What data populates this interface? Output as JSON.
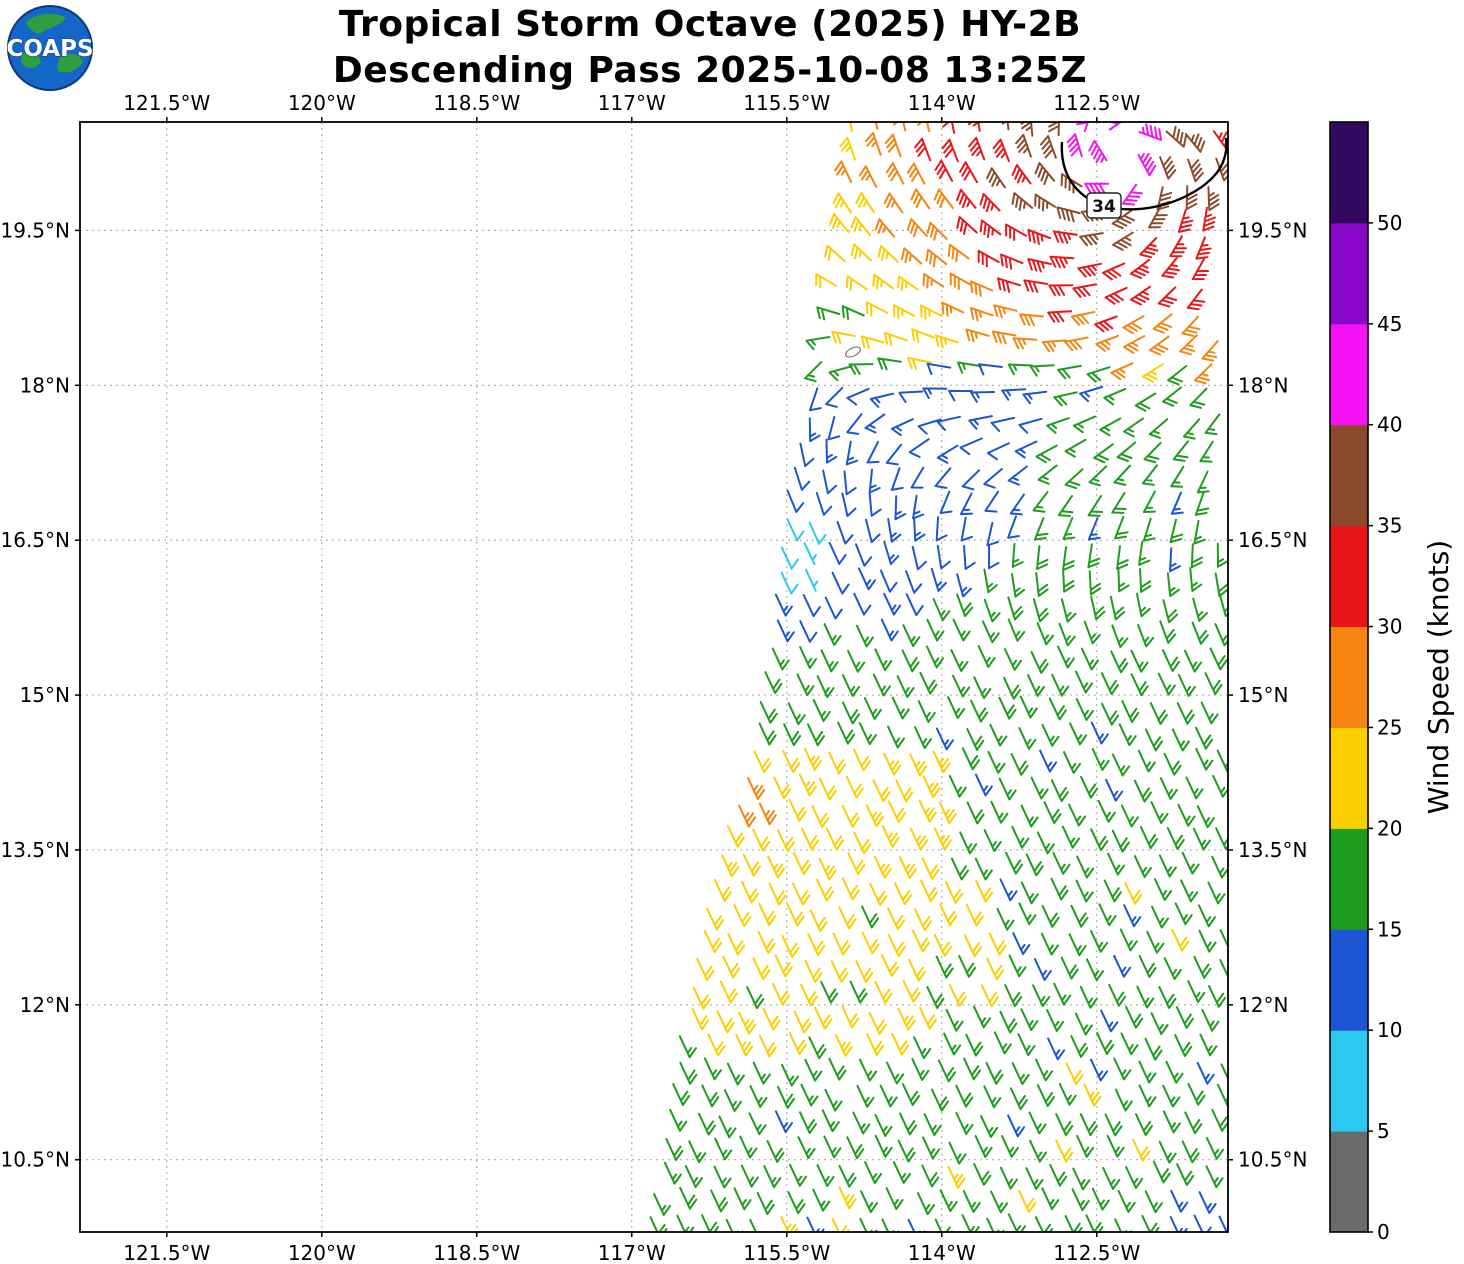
{
  "logo": {
    "text": "COAPS"
  },
  "chart_data": {
    "type": "wind_barb_map",
    "title_line1": "Tropical Storm Octave (2025) HY-2B",
    "title_line2": "Descending Pass 2025-10-08 13:25Z",
    "x_axis": {
      "ticks": [
        -121.5,
        -120,
        -118.5,
        -117,
        -115.5,
        -114,
        -112.5
      ],
      "labels": [
        "121.5°W",
        "120°W",
        "118.5°W",
        "117°W",
        "115.5°W",
        "114°W",
        "112.5°W"
      ]
    },
    "y_axis": {
      "ticks": [
        19.5,
        18,
        16.5,
        15,
        13.5,
        12,
        10.5
      ],
      "labels": [
        "19.5°N",
        "18°N",
        "16.5°N",
        "15°N",
        "13.5°N",
        "12°N",
        "10.5°N"
      ]
    },
    "lon_range": [
      -122.34,
      -111.23
    ],
    "lat_range": [
      9.8,
      20.55
    ],
    "grid": "dashed",
    "colorbar": {
      "label": "Wind Speed (knots)",
      "tick_values": [
        0,
        5,
        10,
        15,
        20,
        25,
        30,
        35,
        40,
        45,
        50
      ],
      "vmax": 55,
      "bin_size": 5,
      "colors": [
        "#6b6b6b",
        "#2BC8F0",
        "#1B55D6",
        "#1E9C1E",
        "#FCCE00",
        "#F58410",
        "#E8161B",
        "#8C4A2C",
        "#F513F5",
        "#8A07CC",
        "#33085F"
      ]
    },
    "contour": {
      "label": "34",
      "value_kt": 34
    },
    "wind_field": {
      "grid_step_deg": 0.25,
      "lat_min": 9.85,
      "lat_max": 20.45,
      "right_lon": -111.28,
      "swath_left_edge": [
        [
          20.5,
          -114.85
        ],
        [
          19.5,
          -114.92
        ],
        [
          18.5,
          -115.05
        ],
        [
          17.5,
          -115.35
        ],
        [
          16.5,
          -115.55
        ],
        [
          15.5,
          -115.62
        ],
        [
          14.5,
          -115.8
        ],
        [
          13.5,
          -116.15
        ],
        [
          12.5,
          -116.32
        ],
        [
          11.5,
          -116.55
        ],
        [
          10.5,
          -116.7
        ],
        [
          9.8,
          -116.85
        ]
      ],
      "storm_center": {
        "lon": -112.3,
        "lat": 20.2
      },
      "radial_profile": [
        [
          0,
          45
        ],
        [
          0.35,
          41.5
        ],
        [
          0.7,
          37.5
        ],
        [
          1.1,
          34
        ],
        [
          1.6,
          31.5
        ],
        [
          2.1,
          28
        ],
        [
          2.7,
          23.5
        ],
        [
          3.3,
          19
        ],
        [
          3.8,
          16.5
        ],
        [
          99,
          16
        ]
      ],
      "south_compress": 1.2,
      "radial_active_above_lat": 18.2,
      "background": {
        "speed_kt": 17,
        "wind_from_deg": 155
      },
      "inflow_deg": 20,
      "cyclonic_blend_radius_deg": [
        2.2,
        4.7
      ],
      "zones": [
        {
          "name": "yellow-band-west",
          "lat": [
            11.7,
            14.6
          ],
          "lon_max": -114.0,
          "speed_kt": 22
        },
        {
          "name": "yellow-patch-east",
          "lat": [
            12.1,
            13.35
          ],
          "lon_max": -113.5,
          "speed_kt": 21
        },
        {
          "name": "orange-speck-west",
          "lat": [
            13.8,
            14.35
          ],
          "lon_max": -115.65,
          "speed_kt": 26
        },
        {
          "name": "blue-tongue",
          "lat": [
            15.65,
            18.18
          ],
          "lon_max_by_lat": [
            [
              18.18,
              -112.85
            ],
            [
              17.4,
              -113.0
            ],
            [
              16.6,
              -113.3
            ],
            [
              16.1,
              -113.9
            ],
            [
              15.85,
              -114.6
            ],
            [
              15.65,
              -115.3
            ]
          ],
          "speed_kt": 12
        },
        {
          "name": "cyan-pocket",
          "lat": [
            16.15,
            16.85
          ],
          "lon_max": -115.15,
          "speed_kt": 8
        },
        {
          "name": "blue-se-corner",
          "lat": [
            9.8,
            10.4
          ],
          "lon_min": -111.9,
          "speed_kt": 13
        }
      ]
    }
  }
}
